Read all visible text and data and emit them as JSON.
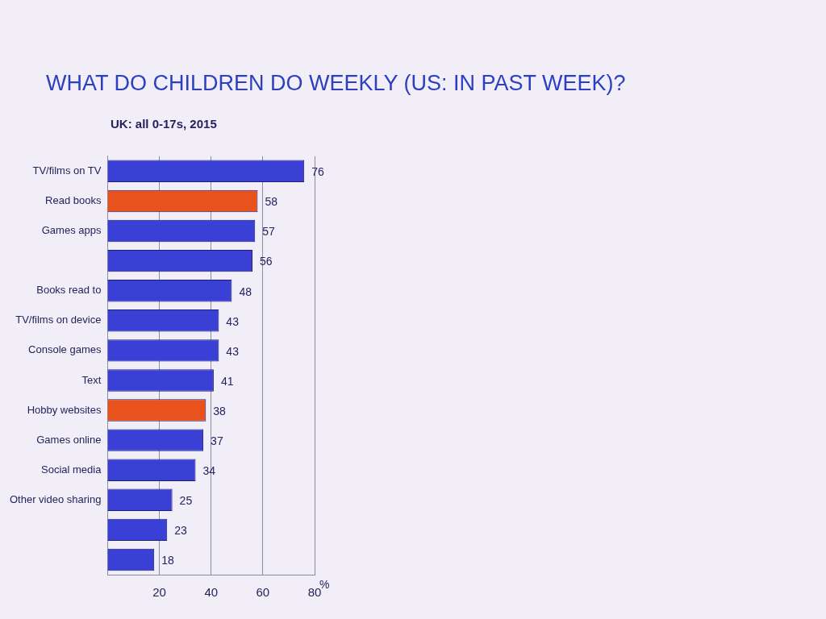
{
  "chart_data": {
    "type": "bar",
    "orientation": "horizontal",
    "title": "WHAT DO CHILDREN DO WEEKLY (US: IN PAST WEEK)?",
    "subtitle": "UK: all 0-17s, 2015",
    "xlabel": "%",
    "categories": [
      "TV/films on TV",
      "Read books",
      "Games apps",
      null,
      "Books read to",
      "TV/films on device",
      "Console games",
      "Text",
      "Hobby websites",
      "Games online",
      "Social media",
      "Other video sharing",
      null,
      null
    ],
    "values": [
      76,
      58,
      57,
      56,
      48,
      43,
      43,
      41,
      38,
      37,
      34,
      25,
      23,
      18
    ],
    "colors": [
      "#3a3fd6",
      "#e8521c",
      "#3a3fd6",
      "#3a3fd6",
      "#3a3fd6",
      "#3a3fd6",
      "#3a3fd6",
      "#3a3fd6",
      "#e8521c",
      "#3a3fd6",
      "#3a3fd6",
      "#3a3fd6",
      "#3a3fd6",
      "#3a3fd6"
    ],
    "xlim": [
      0,
      80
    ],
    "xticks": [
      20,
      40,
      60,
      80
    ],
    "grid": "x",
    "legend": false,
    "data_labels": true
  }
}
